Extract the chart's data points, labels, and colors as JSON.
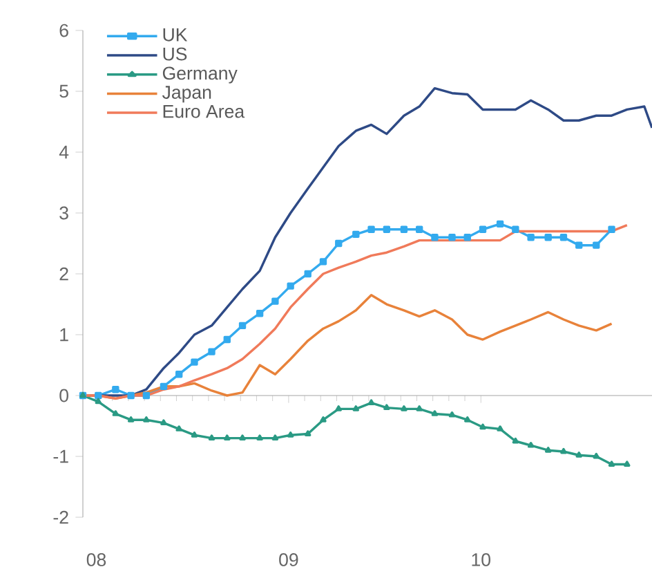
{
  "chart_data": {
    "type": "line",
    "x": [
      2007.93,
      2008.01,
      2008.1,
      2008.18,
      2008.26,
      2008.35,
      2008.43,
      2008.51,
      2008.6,
      2008.68,
      2008.76,
      2008.85,
      2008.93,
      2009.01,
      2009.1,
      2009.18,
      2009.26,
      2009.35,
      2009.43,
      2009.51,
      2009.6,
      2009.68,
      2009.76,
      2009.85,
      2009.93,
      2010.01,
      2010.1,
      2010.18,
      2010.26,
      2010.35,
      2010.43,
      2010.51,
      2010.6,
      2010.68,
      2010.76,
      2010.85,
      2010.89
    ],
    "series": [
      {
        "name": "UK",
        "color": "#33aaee",
        "marker": "square",
        "values": [
          0,
          0,
          0.1,
          0,
          0,
          0.15,
          0.35,
          0.55,
          0.72,
          0.92,
          1.15,
          1.35,
          1.55,
          1.8,
          2.0,
          2.2,
          2.5,
          2.65,
          2.73,
          2.73,
          2.73,
          2.73,
          2.6,
          2.6,
          2.6,
          2.73,
          2.82,
          2.73,
          2.6,
          2.6,
          2.6,
          2.47,
          2.47,
          2.73,
          null,
          null,
          null
        ]
      },
      {
        "name": "US",
        "color": "#2e4a86",
        "values": [
          0,
          0,
          0,
          0,
          0.1,
          0.45,
          0.7,
          1.0,
          1.15,
          1.45,
          1.75,
          2.05,
          2.6,
          3.0,
          3.4,
          3.75,
          4.1,
          4.35,
          4.45,
          4.3,
          4.6,
          4.75,
          5.05,
          4.97,
          4.95,
          4.7,
          4.7,
          4.7,
          4.85,
          4.7,
          4.52,
          4.52,
          4.6,
          4.6,
          4.7,
          4.75,
          4.4
        ]
      },
      {
        "name": "Germany",
        "color": "#2a9a84",
        "marker": "triangle",
        "values": [
          0,
          -0.1,
          -0.3,
          -0.4,
          -0.4,
          -0.45,
          -0.55,
          -0.65,
          -0.7,
          -0.7,
          -0.7,
          -0.7,
          -0.7,
          -0.65,
          -0.63,
          -0.4,
          -0.22,
          -0.22,
          -0.12,
          -0.2,
          -0.22,
          -0.22,
          -0.3,
          -0.32,
          -0.4,
          -0.52,
          -0.55,
          -0.75,
          -0.82,
          -0.9,
          -0.92,
          -0.98,
          -1.0,
          -1.13,
          -1.13,
          null,
          null
        ]
      },
      {
        "name": "Japan",
        "color": "#e8823a",
        "values": [
          0,
          0,
          -0.05,
          0,
          0.05,
          0.15,
          0.15,
          0.2,
          0.08,
          0,
          0.05,
          0.5,
          0.35,
          0.6,
          0.9,
          1.1,
          1.22,
          1.4,
          1.65,
          1.5,
          1.4,
          1.3,
          1.4,
          1.25,
          1.0,
          0.92,
          1.05,
          1.15,
          1.25,
          1.37,
          1.25,
          1.15,
          1.07,
          1.18,
          null,
          null,
          null
        ]
      },
      {
        "name": "Euro Area",
        "color": "#f07a5a",
        "values": [
          0,
          0,
          -0.05,
          0,
          0,
          0.1,
          0.15,
          0.25,
          0.35,
          0.45,
          0.6,
          0.85,
          1.1,
          1.45,
          1.75,
          2.0,
          2.1,
          2.2,
          2.3,
          2.35,
          2.45,
          2.55,
          2.55,
          2.55,
          2.55,
          2.55,
          2.55,
          2.7,
          2.7,
          2.7,
          2.7,
          2.7,
          2.7,
          2.7,
          2.8,
          null,
          null
        ]
      }
    ],
    "xlim": [
      2007.93,
      2010.89
    ],
    "xticks": [
      {
        "value": 2008,
        "label": "08"
      },
      {
        "value": 2009,
        "label": "09"
      },
      {
        "value": 2010,
        "label": "10"
      }
    ],
    "ylim": [
      -2,
      6
    ],
    "yticks": [
      -2,
      -1,
      0,
      1,
      2,
      3,
      4,
      5,
      6
    ],
    "legend": "top left"
  }
}
